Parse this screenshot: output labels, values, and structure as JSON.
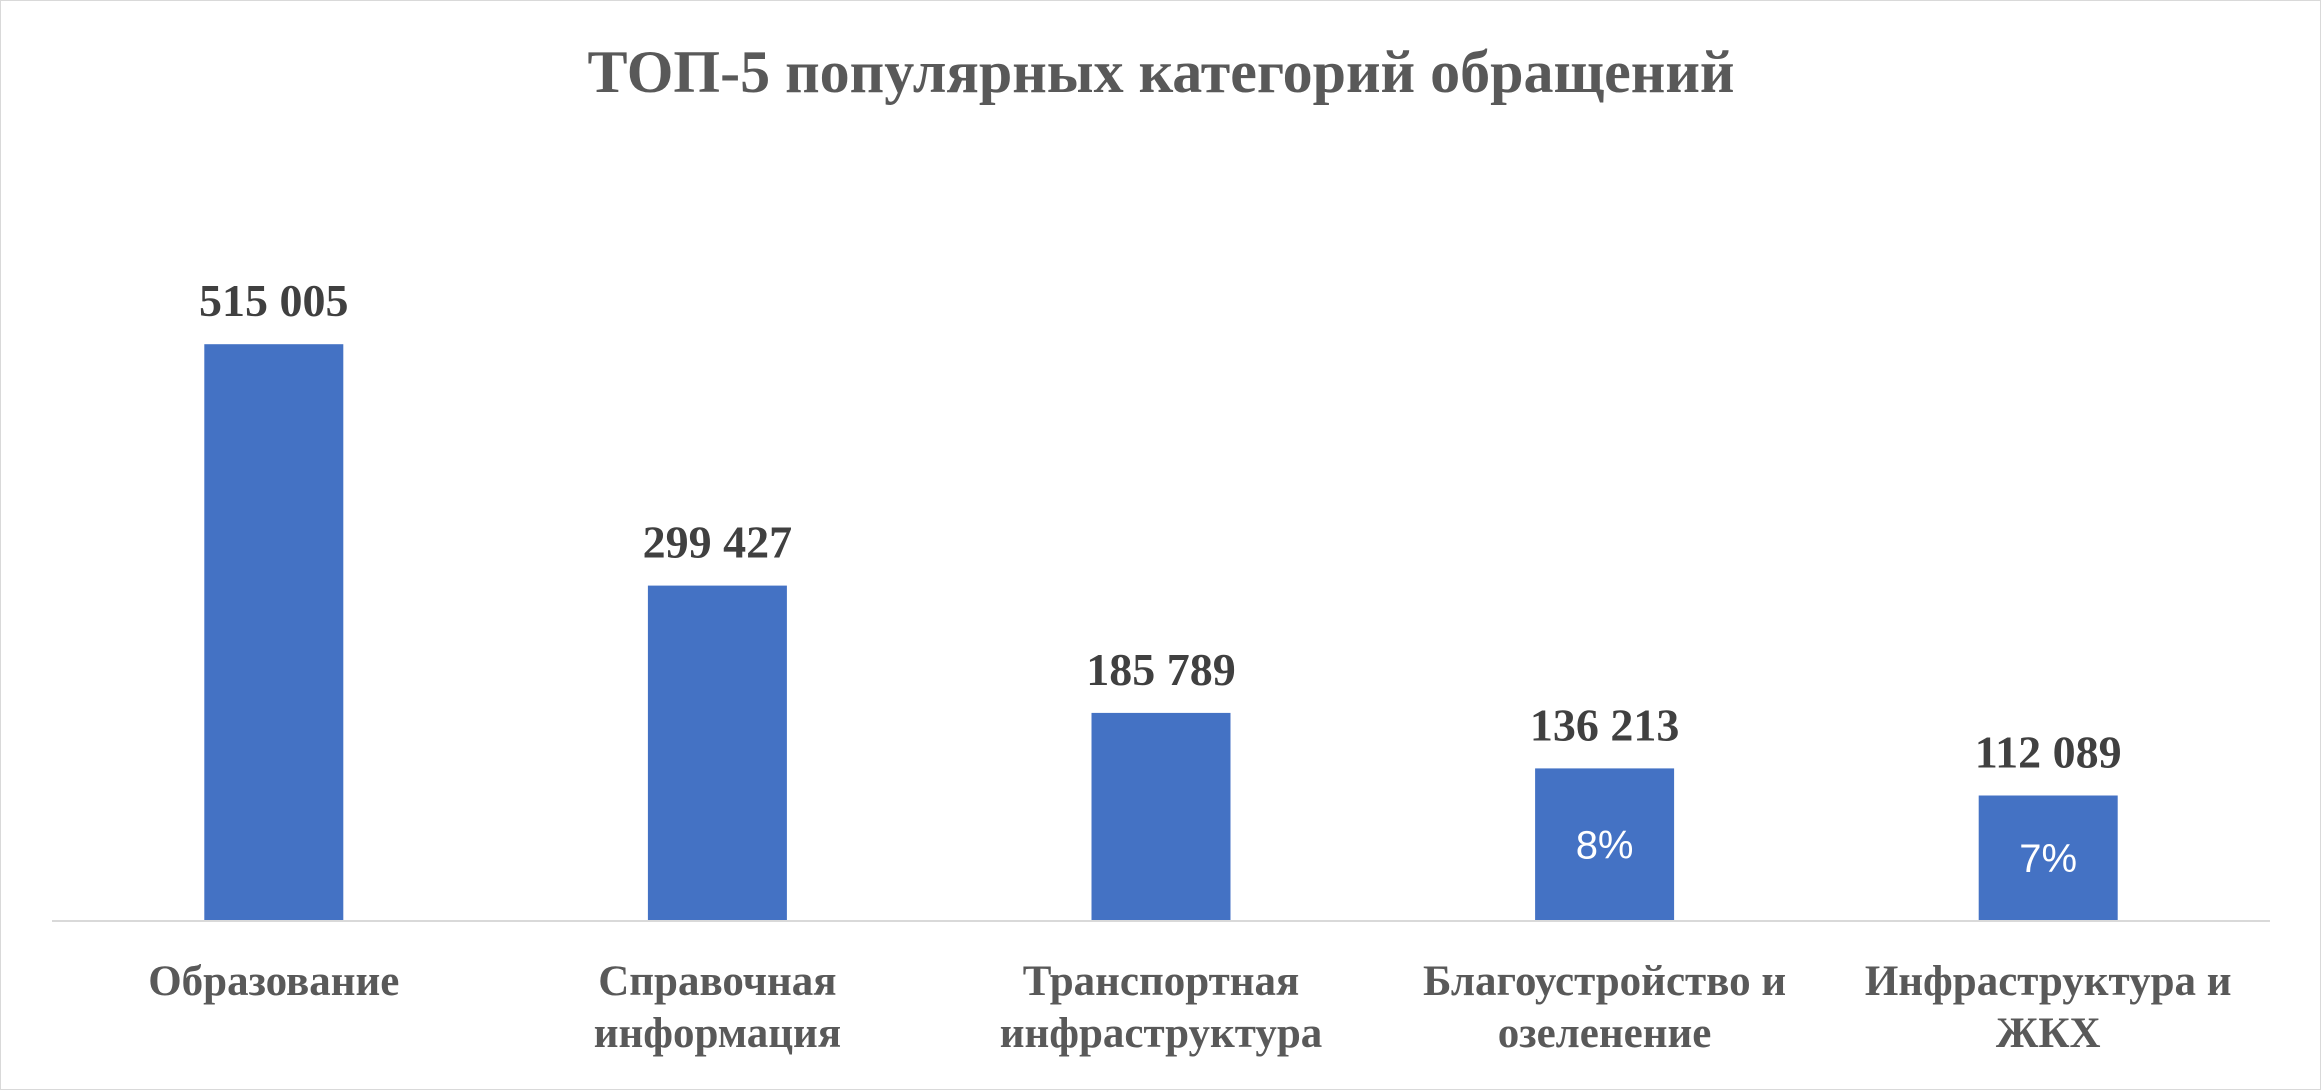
{
  "chart_data": {
    "type": "bar",
    "title": "ТОП-5 популярных категорий обращений",
    "categories": [
      [
        "Образование"
      ],
      [
        "Справочная",
        "информация"
      ],
      [
        "Транспортная",
        "инфраструктура"
      ],
      [
        "Благоустройство и",
        "озеленение"
      ],
      [
        "Инфраструктура и",
        "ЖКХ"
      ]
    ],
    "values": [
      515005,
      299427,
      185789,
      136213,
      112089
    ],
    "value_labels": [
      "515 005",
      "299 427",
      "185 789",
      "136 213",
      "112 089"
    ],
    "inner_labels": [
      "",
      "",
      "",
      "8%",
      "7%"
    ],
    "bar_color": "#4472C4",
    "axis_color": "#d9d9d9",
    "xlabel": "",
    "ylabel": "",
    "ylim": [
      0,
      650000
    ],
    "grid": false,
    "legend": "none"
  }
}
